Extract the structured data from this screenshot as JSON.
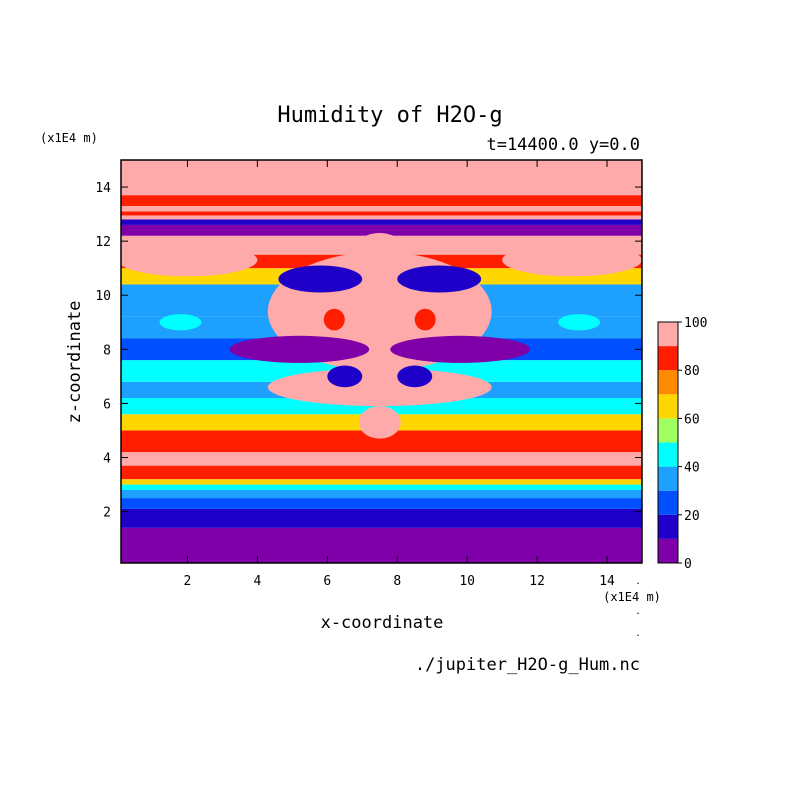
{
  "chart_data": {
    "type": "heatmap",
    "title": "Humidity of H2O-g",
    "subtitle": "t=14400.0 y=0.0",
    "xlabel": "x-coordinate",
    "ylabel": "z-coordinate",
    "x_unit": "(x1E4 m)",
    "y_unit": "(x1E4 m)",
    "xlim": [
      0.1,
      15
    ],
    "ylim": [
      0.1,
      15
    ],
    "x_ticks": [
      "2",
      "4",
      "6",
      "8",
      "10",
      "12",
      "14"
    ],
    "y_ticks": [
      "2",
      "4",
      "6",
      "8",
      "10",
      "12",
      "14"
    ],
    "colorbar": {
      "range": [
        0,
        100
      ],
      "levels": [
        0,
        10,
        20,
        30,
        40,
        50,
        60,
        70,
        80,
        90,
        100
      ],
      "tick_labels": [
        "0",
        "20",
        "40",
        "60",
        "80",
        "100"
      ],
      "colors": [
        "#7f00a8",
        "#1e00c8",
        "#0050ff",
        "#1ea0ff",
        "#00ffff",
        "#a0ff60",
        "#ffd700",
        "#ff8c00",
        "#ff1e00",
        "#ffaaaa"
      ]
    },
    "bands": [
      {
        "z0": 0.1,
        "z1": 1.4,
        "value": 5
      },
      {
        "z0": 1.4,
        "z1": 2.1,
        "value": 15
      },
      {
        "z0": 2.1,
        "z1": 2.5,
        "value": 25
      },
      {
        "z0": 2.5,
        "z1": 2.8,
        "value": 35
      },
      {
        "z0": 2.8,
        "z1": 3.0,
        "value": 45
      },
      {
        "z0": 3.0,
        "z1": 3.2,
        "value": 65
      },
      {
        "z0": 3.2,
        "z1": 3.7,
        "value": 85
      },
      {
        "z0": 3.7,
        "z1": 4.2,
        "value": 95
      },
      {
        "z0": 4.2,
        "z1": 5.0,
        "value": 85
      },
      {
        "z0": 5.0,
        "z1": 5.6,
        "value": 65
      },
      {
        "z0": 5.6,
        "z1": 6.2,
        "value": 45
      },
      {
        "z0": 6.2,
        "z1": 6.8,
        "value": 35
      },
      {
        "z0": 6.8,
        "z1": 7.6,
        "value": 45
      },
      {
        "z0": 7.6,
        "z1": 8.4,
        "value": 25
      },
      {
        "z0": 8.4,
        "z1": 9.2,
        "value": 35
      },
      {
        "z0": 9.2,
        "z1": 10.4,
        "value": 30
      },
      {
        "z0": 10.4,
        "z1": 11.0,
        "value": 65
      },
      {
        "z0": 11.0,
        "z1": 11.5,
        "value": 85
      },
      {
        "z0": 11.5,
        "z1": 12.2,
        "value": 95
      },
      {
        "z0": 12.2,
        "z1": 12.6,
        "value": 5
      },
      {
        "z0": 12.6,
        "z1": 12.8,
        "value": 15
      },
      {
        "z0": 12.8,
        "z1": 12.95,
        "value": 95
      },
      {
        "z0": 12.95,
        "z1": 13.1,
        "value": 85
      },
      {
        "z0": 13.1,
        "z1": 13.3,
        "value": 95
      },
      {
        "z0": 13.3,
        "z1": 13.7,
        "value": 85
      },
      {
        "z0": 13.7,
        "z1": 15.0,
        "value": 95
      }
    ],
    "blobs": [
      {
        "x": 7.5,
        "z": 9.4,
        "rx": 3.2,
        "rz": 2.2,
        "value": 95
      },
      {
        "x": 7.5,
        "z": 11.3,
        "rx": 0.9,
        "rz": 1.0,
        "value": 95
      },
      {
        "x": 7.5,
        "z": 6.6,
        "rx": 3.2,
        "rz": 0.7,
        "value": 95
      },
      {
        "x": 7.5,
        "z": 5.3,
        "rx": 0.6,
        "rz": 0.6,
        "value": 95
      },
      {
        "x": 5.2,
        "z": 8.0,
        "rx": 2.0,
        "rz": 0.5,
        "value": 5
      },
      {
        "x": 9.8,
        "z": 8.0,
        "rx": 2.0,
        "rz": 0.5,
        "value": 5
      },
      {
        "x": 5.8,
        "z": 10.6,
        "rx": 1.2,
        "rz": 0.5,
        "value": 15
      },
      {
        "x": 9.2,
        "z": 10.6,
        "rx": 1.2,
        "rz": 0.5,
        "value": 15
      },
      {
        "x": 6.5,
        "z": 7.0,
        "rx": 0.5,
        "rz": 0.4,
        "value": 15
      },
      {
        "x": 8.5,
        "z": 7.0,
        "rx": 0.5,
        "rz": 0.4,
        "value": 15
      },
      {
        "x": 2.0,
        "z": 11.3,
        "rx": 2.0,
        "rz": 0.6,
        "value": 95
      },
      {
        "x": 13.0,
        "z": 11.3,
        "rx": 2.0,
        "rz": 0.6,
        "value": 95
      },
      {
        "x": 1.8,
        "z": 9.0,
        "rx": 0.6,
        "rz": 0.3,
        "value": 45
      },
      {
        "x": 13.2,
        "z": 9.0,
        "rx": 0.6,
        "rz": 0.3,
        "value": 45
      },
      {
        "x": 6.2,
        "z": 9.1,
        "rx": 0.3,
        "rz": 0.4,
        "value": 85
      },
      {
        "x": 8.8,
        "z": 9.1,
        "rx": 0.3,
        "rz": 0.4,
        "value": 85
      }
    ]
  },
  "source_file": "./jupiter_H2O-g_Hum.nc"
}
